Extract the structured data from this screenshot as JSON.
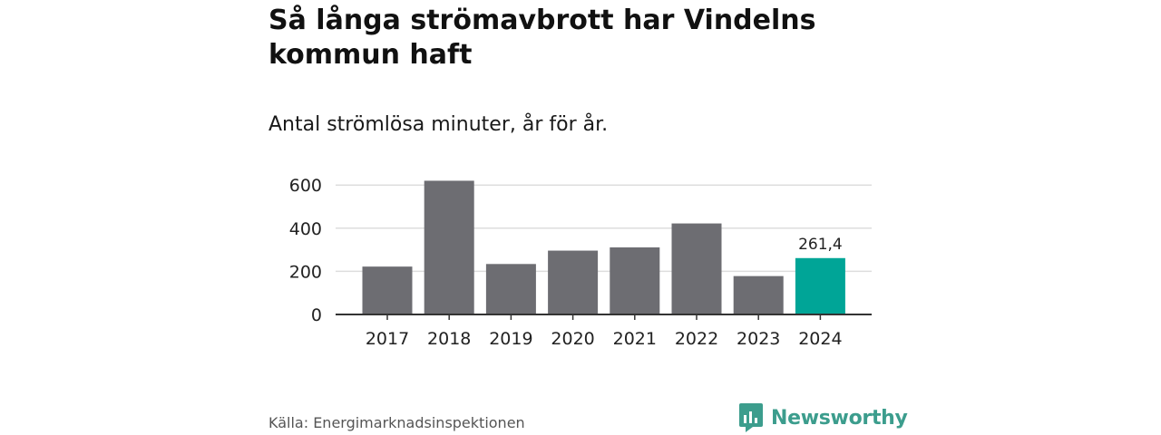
{
  "title": "Så långa strömavbrott har Vindelns kommun haft",
  "subtitle": "Antal strömlösa minuter, år för år.",
  "source": "Källa: Energimarknadsinspektionen",
  "brand": {
    "name": "Newsworthy",
    "color": "#3c9d8d"
  },
  "chart_data": {
    "type": "bar",
    "categories": [
      "2017",
      "2018",
      "2019",
      "2020",
      "2021",
      "2022",
      "2023",
      "2024"
    ],
    "values": [
      222,
      620,
      234,
      296,
      311,
      422,
      178,
      261.4
    ],
    "data_labels": [
      "",
      "",
      "",
      "",
      "",
      "",
      "",
      "261,4"
    ],
    "yticks": [
      0,
      200,
      400,
      600
    ],
    "ylim": [
      0,
      650
    ],
    "grid": true,
    "bar_color": "#6d6d72",
    "highlight_color": "#00a597",
    "highlight_index": 7
  }
}
